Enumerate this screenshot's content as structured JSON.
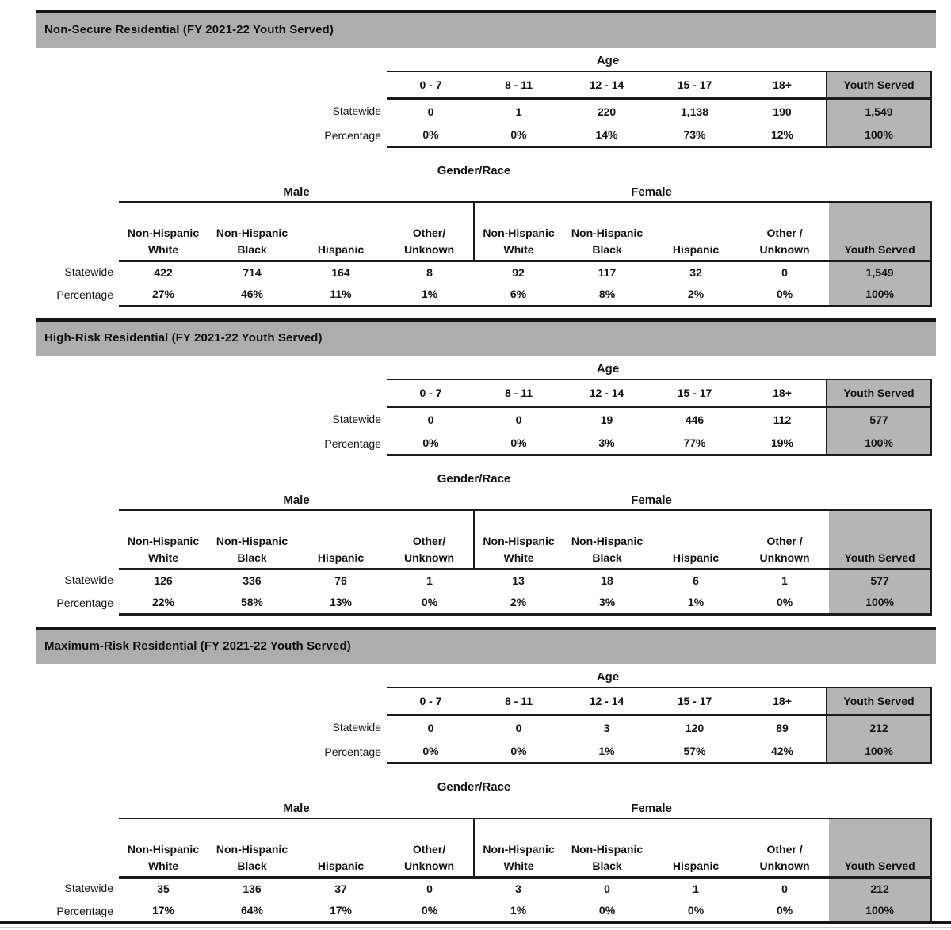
{
  "colors": {
    "section_bar": "#adadad",
    "highlight_cell": "#b5b5b5",
    "line": "#1b1b1b"
  },
  "labels": {
    "age_title": "Age",
    "gender_title": "Gender/Race",
    "male": "Male",
    "female": "Female",
    "statewide": "Statewide",
    "percentage": "Percentage",
    "youth_served": "Youth Served"
  },
  "age_columns": [
    "0 - 7",
    "8 - 11",
    "12 - 14",
    "15 - 17",
    "18+"
  ],
  "gender_columns": [
    "Non-Hispanic\nWhite",
    "Non-Hispanic\nBlack",
    "Hispanic",
    "Other/\nUnknown",
    "Non-Hispanic\nWhite",
    "Non-Hispanic\nBlack",
    "Hispanic",
    "Other /\nUnknown"
  ],
  "sections": [
    {
      "title": "Non-Secure Residential (FY 2021-22 Youth Served)",
      "age": {
        "statewide": [
          "0",
          "1",
          "220",
          "1,138",
          "190"
        ],
        "statewide_total": "1,549",
        "percentage": [
          "0%",
          "0%",
          "14%",
          "73%",
          "12%"
        ],
        "percentage_total": "100%"
      },
      "gender": {
        "statewide": [
          "422",
          "714",
          "164",
          "8",
          "92",
          "117",
          "32",
          "0"
        ],
        "statewide_total": "1,549",
        "percentage": [
          "27%",
          "46%",
          "11%",
          "1%",
          "6%",
          "8%",
          "2%",
          "0%"
        ],
        "percentage_total": "100%"
      }
    },
    {
      "title": "High-Risk Residential (FY 2021-22 Youth Served)",
      "age": {
        "statewide": [
          "0",
          "0",
          "19",
          "446",
          "112"
        ],
        "statewide_total": "577",
        "percentage": [
          "0%",
          "0%",
          "3%",
          "77%",
          "19%"
        ],
        "percentage_total": "100%"
      },
      "gender": {
        "statewide": [
          "126",
          "336",
          "76",
          "1",
          "13",
          "18",
          "6",
          "1"
        ],
        "statewide_total": "577",
        "percentage": [
          "22%",
          "58%",
          "13%",
          "0%",
          "2%",
          "3%",
          "1%",
          "0%"
        ],
        "percentage_total": "100%"
      }
    },
    {
      "title": "Maximum-Risk Residential (FY 2021-22 Youth Served)",
      "age": {
        "statewide": [
          "0",
          "0",
          "3",
          "120",
          "89"
        ],
        "statewide_total": "212",
        "percentage": [
          "0%",
          "0%",
          "1%",
          "57%",
          "42%"
        ],
        "percentage_total": "100%"
      },
      "gender": {
        "statewide": [
          "35",
          "136",
          "37",
          "0",
          "3",
          "0",
          "1",
          "0"
        ],
        "statewide_total": "212",
        "percentage": [
          "17%",
          "64%",
          "17%",
          "0%",
          "1%",
          "0%",
          "0%",
          "0%"
        ],
        "percentage_total": "100%"
      }
    }
  ]
}
